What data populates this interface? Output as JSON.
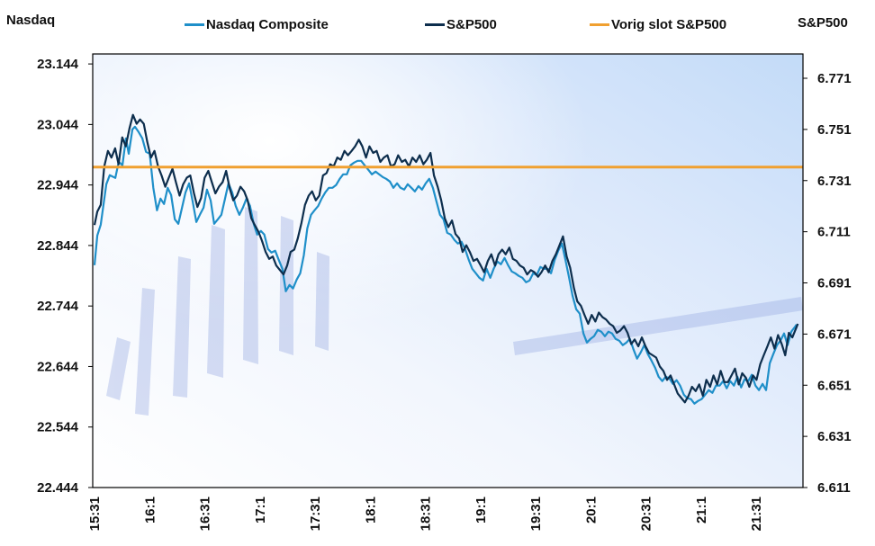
{
  "chart_data": {
    "type": "line",
    "title": "",
    "left_axis": {
      "label": "Nasdaq",
      "ticks": [
        "22.444",
        "22.544",
        "22.644",
        "22.744",
        "22.844",
        "22.944",
        "23.044",
        "23.144"
      ],
      "tick_values": [
        22.444,
        22.544,
        22.644,
        22.744,
        22.844,
        22.944,
        23.044,
        23.144
      ],
      "range": [
        22.444,
        23.1605
      ]
    },
    "right_axis": {
      "label": "S&P500",
      "ticks": [
        "6.611",
        "6.631",
        "6.651",
        "6.671",
        "6.691",
        "6.711",
        "6.731",
        "6.751",
        "6.771"
      ],
      "tick_values": [
        6.611,
        6.631,
        6.651,
        6.671,
        6.691,
        6.711,
        6.731,
        6.751,
        6.771
      ],
      "range": [
        6.611,
        6.7805
      ]
    },
    "x_axis": {
      "ticks": [
        "15:31",
        "16:1",
        "16:31",
        "17:1",
        "17:31",
        "18:1",
        "18:31",
        "19:1",
        "19:31",
        "20:1",
        "20:31",
        "21:1",
        "21:31"
      ],
      "tick_minutes": [
        0,
        30,
        60,
        90,
        120,
        150,
        180,
        210,
        240,
        270,
        300,
        330,
        360
      ],
      "range_minutes": [
        0,
        384
      ]
    },
    "legend": {
      "position": "top",
      "items": [
        {
          "name": "Nasdaq Composite",
          "color": "#1f8fc9"
        },
        {
          "name": "S&P500",
          "color": "#0d2e4d"
        },
        {
          "name": "Vorig slot S&P500",
          "color": "#f0a030"
        }
      ]
    },
    "series": [
      {
        "name": "Nasdaq Composite",
        "axis": "left",
        "color": "#1f8fc9",
        "x_minutes": [
          0,
          1.5,
          3.4,
          6.4,
          8.3,
          11.3,
          13.2,
          15.2,
          17.1,
          18.6,
          20.6,
          22,
          24,
          26,
          28,
          30,
          32,
          34,
          35.9,
          37.8,
          39.8,
          41.7,
          43.7,
          45.6,
          47.6,
          49.5,
          51.5,
          53.4,
          55.4,
          57.3,
          59.3,
          61.2,
          63.2,
          65.1,
          67.1,
          69,
          71,
          72.9,
          74.9,
          76.8,
          78.8,
          80.7,
          82.7,
          84.6,
          86.6,
          88.5,
          90.5,
          92.4,
          94.4,
          96.3,
          98.3,
          100.2,
          102.2,
          104.1,
          106.1,
          108,
          110,
          111.9,
          113.9,
          115.8,
          117.8,
          119.7,
          121.7,
          123.6,
          125.6,
          127.5,
          129.5,
          131.4,
          133.4,
          135.3,
          137.3,
          139.2,
          141.2,
          143.1,
          145.1,
          147,
          149,
          150.9,
          152.9,
          154.8,
          156.8,
          158.7,
          160.7,
          162.6,
          164.6,
          166.5,
          168.5,
          170.4,
          172.4,
          174.3,
          176.3,
          178.2,
          180.2,
          182.1,
          184.1,
          186,
          188,
          189.9,
          191.9,
          193.8,
          195.8,
          197.7,
          199.7,
          201.6,
          203.6,
          205.5,
          207.5,
          209.4,
          211.4,
          213.3,
          215.3,
          217.2,
          219.2,
          221.1,
          223.1,
          225,
          227,
          228.9,
          230.9,
          232.8,
          234.8,
          236.7,
          238.7,
          240.6,
          242.6,
          244.5,
          246.5,
          248.4,
          250.4,
          252.3,
          254.3,
          256.2,
          258.2,
          260.1,
          262.1,
          264,
          266,
          267.9,
          269.9,
          271.8,
          273.8,
          275.7,
          277.7,
          279.6,
          281.6,
          283.5,
          285.5,
          287.4,
          289.4,
          291.3,
          293.3,
          295.2,
          297.2,
          299.1,
          301.1,
          303,
          305,
          306.9,
          308.9,
          310.8,
          312.8,
          314.7,
          316.7,
          318.6,
          320.6,
          322.5,
          324.5,
          326.4,
          328.4,
          330.3,
          332.3,
          334.2,
          336.2,
          338.1,
          340.1,
          342,
          344,
          345.9,
          347.9,
          349.8,
          351.8,
          353.7,
          355.7,
          357.6,
          359.6,
          361.5,
          363.5,
          365.4,
          367.4,
          369.3,
          371.3,
          373.2,
          375.2,
          377.1,
          379.1,
          381,
          382
        ],
        "values": [
          22.8115,
          22.8605,
          22.8783,
          22.9452,
          22.9601,
          22.9556,
          22.9824,
          22.9764,
          23.021,
          22.9957,
          23.0359,
          23.0403,
          23.0314,
          23.021,
          22.9987,
          22.9957,
          22.9393,
          22.9021,
          22.9214,
          22.9125,
          22.9393,
          22.9274,
          22.8873,
          22.8798,
          22.9065,
          22.9318,
          22.9467,
          22.917,
          22.8828,
          22.8947,
          22.9065,
          22.9363,
          22.9185,
          22.8798,
          22.8873,
          22.8947,
          22.9214,
          22.9467,
          22.9318,
          22.9095,
          22.8947,
          22.9065,
          22.9214,
          22.9095,
          22.8798,
          22.862,
          22.868,
          22.862,
          22.8382,
          22.8323,
          22.8353,
          22.8204,
          22.8055,
          22.7684,
          22.7788,
          22.7729,
          22.7877,
          22.7981,
          22.8278,
          22.8724,
          22.8947,
          22.9021,
          22.9095,
          22.9214,
          22.9318,
          22.9393,
          22.9393,
          22.9437,
          22.9541,
          22.9616,
          22.9616,
          22.9764,
          22.9809,
          22.9839,
          22.9839,
          22.9764,
          22.969,
          22.9616,
          22.966,
          22.9616,
          22.9571,
          22.9541,
          22.9497,
          22.9393,
          22.9467,
          22.9393,
          22.9363,
          22.9452,
          22.9393,
          22.9333,
          22.9422,
          22.9363,
          22.9467,
          22.9541,
          22.9393,
          22.917,
          22.8947,
          22.8873,
          22.865,
          22.862,
          22.8531,
          22.8472,
          22.8501,
          22.8382,
          22.8204,
          22.8055,
          22.7981,
          22.7907,
          22.7862,
          22.8055,
          22.7907,
          22.8055,
          22.8174,
          22.8129,
          22.8234,
          22.8115,
          22.8011,
          22.7981,
          22.7936,
          22.7907,
          22.7832,
          22.7862,
          22.7981,
          22.7951,
          22.8085,
          22.8055,
          22.8055,
          22.7981,
          22.8204,
          22.8353,
          22.8472,
          22.8204,
          22.7907,
          22.761,
          22.7387,
          22.7313,
          22.6986,
          22.6837,
          22.6897,
          22.6941,
          22.7045,
          22.7016,
          22.6941,
          22.7016,
          22.6986,
          22.6897,
          22.6867,
          22.6793,
          22.6837,
          22.6897,
          22.6719,
          22.657,
          22.6674,
          22.6793,
          22.6644,
          22.654,
          22.6421,
          22.6272,
          22.6198,
          22.6272,
          22.6243,
          22.6153,
          22.6213,
          22.6124,
          22.5975,
          22.5916,
          22.5901,
          22.5827,
          22.5871,
          22.5901,
          22.5975,
          22.605,
          22.6005,
          22.6124,
          22.6124,
          22.6198,
          22.6079,
          22.6198,
          22.6124,
          22.6272,
          22.6094,
          22.6228,
          22.6198,
          22.6302,
          22.6124,
          22.605,
          22.6153,
          22.605,
          22.6495,
          22.6644,
          22.6793,
          22.6867,
          22.6986,
          22.6793,
          22.7016,
          22.709,
          22.7134
        ]
      },
      {
        "name": "S&P500",
        "axis": "right",
        "color": "#0d2e4d",
        "x_minutes": [
          0,
          1.5,
          3.4,
          5.3,
          7.3,
          9.2,
          11.2,
          13.1,
          15.1,
          17,
          19,
          20.9,
          22.9,
          24.8,
          26.8,
          28.7,
          30.7,
          32.6,
          34.6,
          36.5,
          38.5,
          40.4,
          42.4,
          44.3,
          46.3,
          48.2,
          50.2,
          52.1,
          54.1,
          56,
          58,
          59.9,
          61.9,
          63.8,
          65.8,
          67.7,
          69.7,
          71.6,
          73.6,
          75.5,
          77.5,
          79.4,
          81.4,
          83.3,
          85.3,
          87.2,
          89.2,
          91.1,
          93.1,
          95,
          97,
          98.9,
          100.9,
          102.8,
          104.8,
          106.7,
          108.7,
          110.6,
          112.6,
          114.5,
          116.5,
          118.4,
          120.4,
          122.3,
          124.3,
          126.2,
          128.2,
          130.1,
          132.1,
          134,
          136,
          137.9,
          139.9,
          141.8,
          143.8,
          145.7,
          147.7,
          149.6,
          151.6,
          153.5,
          155.5,
          157.4,
          159.4,
          161.3,
          163.3,
          165.2,
          167.2,
          169.1,
          171.1,
          173,
          175,
          176.9,
          178.9,
          180.8,
          182.8,
          184.7,
          186.7,
          188.6,
          190.6,
          192.5,
          194.5,
          196.4,
          198.4,
          200.3,
          202.3,
          204.2,
          206.2,
          208.1,
          210.1,
          212,
          214,
          215.9,
          217.9,
          219.8,
          221.8,
          223.7,
          225.7,
          227.6,
          229.6,
          231.5,
          233.5,
          235.4,
          237.4,
          239.3,
          241.3,
          243.2,
          245.2,
          247.1,
          249.1,
          251,
          253,
          254.9,
          256.9,
          258.8,
          260.8,
          262.7,
          264.7,
          266.6,
          268.6,
          270.5,
          272.5,
          274.4,
          276.4,
          278.3,
          280.3,
          282.2,
          284.2,
          286.1,
          288.1,
          290,
          292,
          293.9,
          295.9,
          297.8,
          299.8,
          301.7,
          303.7,
          305.6,
          307.6,
          309.5,
          311.5,
          313.4,
          315.4,
          317.3,
          319.3,
          321.2,
          323.2,
          325.1,
          327.1,
          329,
          331,
          332.9,
          334.9,
          336.8,
          338.8,
          340.7,
          342.7,
          344.6,
          346.6,
          348.5,
          350.5,
          352.4,
          354.4,
          356.3,
          358.3,
          360.2,
          362.2,
          364.1,
          366.1,
          368,
          370,
          371.9,
          373.9,
          375.8,
          377.8,
          379.7,
          381.7,
          382.7
        ],
        "values": [
          6.7136,
          6.7189,
          6.7215,
          6.7365,
          6.7426,
          6.74,
          6.7436,
          6.7374,
          6.7479,
          6.7444,
          6.7514,
          6.7567,
          6.7532,
          6.7549,
          6.7532,
          6.7461,
          6.74,
          6.7426,
          6.7365,
          6.733,
          6.7286,
          6.7321,
          6.7356,
          6.7304,
          6.7251,
          6.7295,
          6.7321,
          6.733,
          6.726,
          6.7207,
          6.7242,
          6.7321,
          6.7348,
          6.7304,
          6.726,
          6.7286,
          6.7304,
          6.7348,
          6.7278,
          6.7233,
          6.7251,
          6.7286,
          6.7268,
          6.7233,
          6.7163,
          6.7136,
          6.711,
          6.7075,
          6.7031,
          6.7004,
          6.7013,
          6.6978,
          6.696,
          6.6943,
          6.6978,
          6.7031,
          6.704,
          6.7084,
          6.7145,
          6.7215,
          6.7251,
          6.7268,
          6.7233,
          6.7251,
          6.733,
          6.7339,
          6.7374,
          6.7365,
          6.74,
          6.7391,
          6.7426,
          6.7409,
          6.7426,
          6.7444,
          6.747,
          6.7444,
          6.74,
          6.7444,
          6.7418,
          6.7426,
          6.7383,
          6.74,
          6.7409,
          6.7365,
          6.7374,
          6.7409,
          6.7383,
          6.7391,
          6.7365,
          6.74,
          6.7383,
          6.7409,
          6.7374,
          6.7391,
          6.7418,
          6.733,
          6.7286,
          6.7233,
          6.7163,
          6.7128,
          6.7154,
          6.7101,
          6.7084,
          6.7031,
          6.7057,
          6.7031,
          6.6996,
          6.7004,
          6.6978,
          6.6952,
          6.6996,
          6.7022,
          6.6978,
          6.7022,
          6.704,
          6.7022,
          6.7048,
          6.7004,
          6.6996,
          6.6978,
          6.6969,
          6.6943,
          6.696,
          6.6952,
          6.6934,
          6.6952,
          6.6978,
          6.6952,
          6.6996,
          6.7022,
          6.7057,
          6.7092,
          6.7013,
          6.6969,
          6.6891,
          6.6838,
          6.682,
          6.6785,
          6.675,
          6.6785,
          6.6759,
          6.6794,
          6.6776,
          6.6767,
          6.675,
          6.6741,
          6.6715,
          6.6724,
          6.6741,
          6.6715,
          6.6671,
          6.6689,
          6.6662,
          6.6697,
          6.6662,
          6.6636,
          6.6627,
          6.6618,
          6.6583,
          6.6566,
          6.6531,
          6.6548,
          6.6513,
          6.6478,
          6.646,
          6.6443,
          6.6469,
          6.6504,
          6.6487,
          6.6513,
          6.6469,
          6.6531,
          6.6504,
          6.6548,
          6.6513,
          6.6566,
          6.6522,
          6.6522,
          6.6548,
          6.6575,
          6.6513,
          6.6557,
          6.6539,
          6.6504,
          6.6548,
          6.6531,
          6.6592,
          6.6627,
          6.6662,
          6.6697,
          6.6653,
          6.6706,
          6.6671,
          6.6627,
          6.6715,
          6.6697,
          6.6732,
          6.675
        ]
      },
      {
        "name": "Vorig slot S&P500",
        "axis": "right",
        "color": "#f0a030",
        "x_minutes": [
          0,
          384
        ],
        "values": [
          6.7363,
          6.7363
        ]
      }
    ]
  }
}
